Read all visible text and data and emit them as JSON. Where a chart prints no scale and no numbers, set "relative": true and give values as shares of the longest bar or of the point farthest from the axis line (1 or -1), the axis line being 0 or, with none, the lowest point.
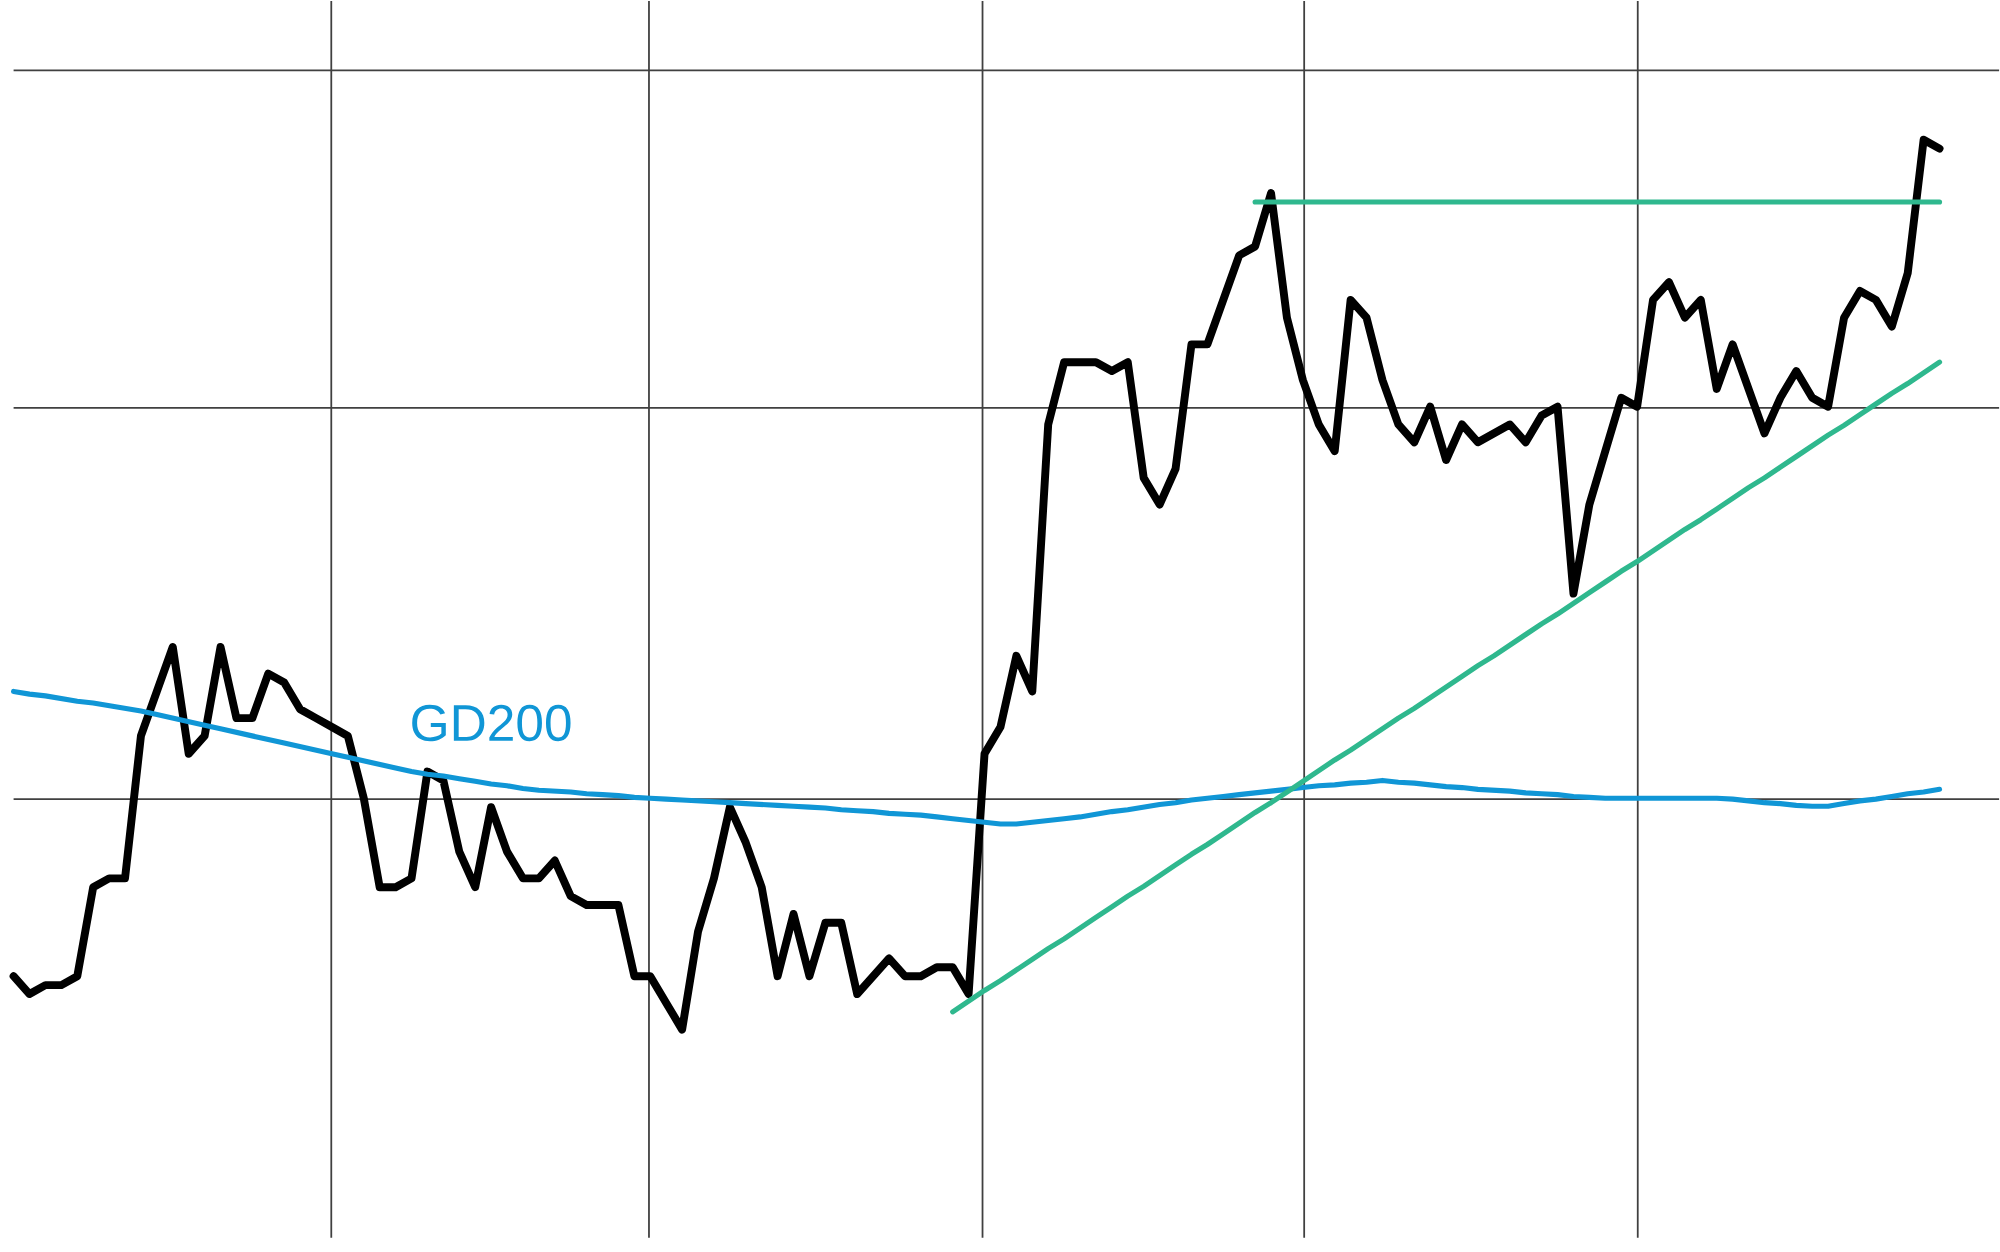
{
  "chart_data": {
    "type": "line",
    "relative": true,
    "grid": true,
    "categories": [
      null,
      null,
      null,
      null,
      null,
      null,
      null,
      null,
      null,
      null,
      null,
      null,
      null,
      null,
      null,
      null,
      null,
      null,
      null,
      null,
      null,
      null,
      null,
      null,
      null,
      null,
      null,
      null,
      null,
      null,
      null,
      null,
      null,
      null,
      null,
      null,
      null,
      null,
      null,
      null,
      null,
      null,
      null,
      null,
      null,
      null,
      null,
      null,
      null,
      null,
      null,
      null,
      null,
      null,
      null,
      null,
      null,
      null,
      null,
      null,
      null,
      null,
      null,
      null,
      null,
      null,
      null,
      null,
      null,
      null,
      null,
      null,
      null,
      null,
      null,
      null,
      null,
      null,
      null,
      null,
      null,
      null,
      null,
      null,
      null,
      null,
      null,
      null,
      null,
      null,
      null,
      null,
      null,
      null,
      null,
      null,
      null,
      null,
      null,
      null,
      null,
      null,
      null,
      null,
      null,
      null,
      null,
      null,
      null,
      null,
      null,
      null,
      null,
      null,
      null,
      null,
      null,
      null,
      null,
      null,
      null,
      null
    ],
    "series": [
      {
        "color": "#000000",
        "values": [
          0.06,
          0.04,
          0.05,
          0.05,
          0.06,
          0.16,
          0.17,
          0.17,
          0.33,
          0.38,
          0.43,
          0.31,
          0.33,
          0.43,
          0.35,
          0.35,
          0.4,
          0.39,
          0.36,
          0.35,
          0.34,
          0.33,
          0.26,
          0.16,
          0.16,
          0.17,
          0.29,
          0.28,
          0.2,
          0.16,
          0.25,
          0.2,
          0.17,
          0.17,
          0.19,
          0.15,
          0.14,
          0.14,
          0.14,
          0.06,
          0.06,
          0.03,
          0.0,
          0.11,
          0.17,
          0.25,
          0.21,
          0.16,
          0.06,
          0.13,
          0.06,
          0.12,
          0.12,
          0.04,
          0.06,
          0.08,
          0.06,
          0.06,
          0.07,
          0.07,
          0.04,
          0.31,
          0.34,
          0.42,
          0.38,
          0.68,
          0.75,
          0.75,
          0.75,
          0.74,
          0.75,
          0.62,
          0.59,
          0.63,
          0.77,
          0.77,
          0.82,
          0.87,
          0.88,
          0.94,
          0.8,
          0.73,
          0.68,
          0.65,
          0.82,
          0.8,
          0.73,
          0.68,
          0.66,
          0.7,
          0.64,
          0.68,
          0.66,
          0.67,
          0.68,
          0.66,
          0.69,
          0.7,
          0.49,
          0.59,
          0.65,
          0.71,
          0.7,
          0.82,
          0.84,
          0.8,
          0.82,
          0.72,
          0.77,
          0.72,
          0.67,
          0.71,
          0.74,
          0.71,
          0.7,
          0.8,
          0.83,
          0.82,
          0.79,
          0.85,
          1.0,
          0.99
        ]
      },
      {
        "name": "GD200",
        "color": "#1096d6",
        "values": [
          0.38,
          0.377,
          0.375,
          0.372,
          0.369,
          0.367,
          0.364,
          0.361,
          0.358,
          0.354,
          0.35,
          0.346,
          0.342,
          0.338,
          0.334,
          0.33,
          0.326,
          0.322,
          0.318,
          0.314,
          0.31,
          0.306,
          0.302,
          0.298,
          0.294,
          0.29,
          0.287,
          0.285,
          0.282,
          0.279,
          0.276,
          0.274,
          0.271,
          0.269,
          0.268,
          0.267,
          0.265,
          0.264,
          0.263,
          0.261,
          0.26,
          0.259,
          0.258,
          0.257,
          0.256,
          0.255,
          0.254,
          0.253,
          0.252,
          0.251,
          0.25,
          0.249,
          0.247,
          0.246,
          0.245,
          0.243,
          0.242,
          0.241,
          0.239,
          0.237,
          0.235,
          0.233,
          0.231,
          0.231,
          0.233,
          0.235,
          0.237,
          0.239,
          0.242,
          0.245,
          0.247,
          0.25,
          0.253,
          0.255,
          0.258,
          0.26,
          0.262,
          0.264,
          0.266,
          0.268,
          0.27,
          0.272,
          0.274,
          0.275,
          0.277,
          0.278,
          0.28,
          0.278,
          0.277,
          0.275,
          0.273,
          0.272,
          0.27,
          0.269,
          0.268,
          0.266,
          0.265,
          0.264,
          0.262,
          0.261,
          0.26,
          0.26,
          0.26,
          0.26,
          0.26,
          0.26,
          0.26,
          0.26,
          0.259,
          0.257,
          0.255,
          0.254,
          0.252,
          0.251,
          0.251,
          0.254,
          0.257,
          0.259,
          0.262,
          0.265,
          0.267,
          0.27
        ]
      },
      {
        "color": "#2fb88e",
        "values": [
          null,
          null,
          null,
          null,
          null,
          null,
          null,
          null,
          null,
          null,
          null,
          null,
          null,
          null,
          null,
          null,
          null,
          null,
          null,
          null,
          null,
          null,
          null,
          null,
          null,
          null,
          null,
          null,
          null,
          null,
          null,
          null,
          null,
          null,
          null,
          null,
          null,
          null,
          null,
          null,
          null,
          null,
          null,
          null,
          null,
          null,
          null,
          null,
          null,
          null,
          null,
          null,
          null,
          null,
          null,
          null,
          null,
          null,
          null,
          null,
          null,
          null,
          null,
          null,
          null,
          null,
          null,
          null,
          null,
          null,
          null,
          null,
          null,
          null,
          null,
          null,
          null,
          null,
          0.93,
          0.93,
          0.93,
          0.93,
          0.93,
          0.93,
          0.93,
          0.93,
          0.93,
          0.93,
          0.93,
          0.93,
          0.93,
          0.93,
          0.93,
          0.93,
          0.93,
          0.93,
          0.93,
          0.93,
          0.93,
          0.93,
          0.93,
          0.93,
          0.93,
          0.93,
          0.93,
          0.93,
          0.93,
          0.93,
          0.93,
          0.93,
          0.93,
          0.93,
          0.93,
          0.93,
          0.93,
          0.93,
          0.93,
          0.93,
          0.93,
          0.93,
          0.93,
          0.93
        ]
      },
      {
        "color": "#2fb88e",
        "values": [
          null,
          null,
          null,
          null,
          null,
          null,
          null,
          null,
          null,
          null,
          null,
          null,
          null,
          null,
          null,
          null,
          null,
          null,
          null,
          null,
          null,
          null,
          null,
          null,
          null,
          null,
          null,
          null,
          null,
          null,
          null,
          null,
          null,
          null,
          null,
          null,
          null,
          null,
          null,
          null,
          null,
          null,
          null,
          null,
          null,
          null,
          null,
          null,
          null,
          null,
          null,
          null,
          null,
          null,
          null,
          null,
          null,
          null,
          null,
          0.02,
          0.032,
          0.044,
          0.055,
          0.067,
          0.079,
          0.091,
          0.102,
          0.114,
          0.126,
          0.138,
          0.15,
          0.161,
          0.173,
          0.185,
          0.197,
          0.208,
          0.22,
          0.232,
          0.244,
          0.255,
          0.267,
          0.279,
          0.291,
          0.303,
          0.314,
          0.326,
          0.338,
          0.35,
          0.361,
          0.373,
          0.385,
          0.397,
          0.409,
          0.42,
          0.432,
          0.444,
          0.456,
          0.467,
          0.479,
          0.491,
          0.503,
          0.515,
          0.526,
          0.538,
          0.55,
          0.562,
          0.573,
          0.585,
          0.597,
          0.609,
          0.62,
          0.632,
          0.644,
          0.656,
          0.668,
          0.679,
          0.691,
          0.703,
          0.715,
          0.726,
          0.738,
          0.75
        ]
      }
    ]
  }
}
